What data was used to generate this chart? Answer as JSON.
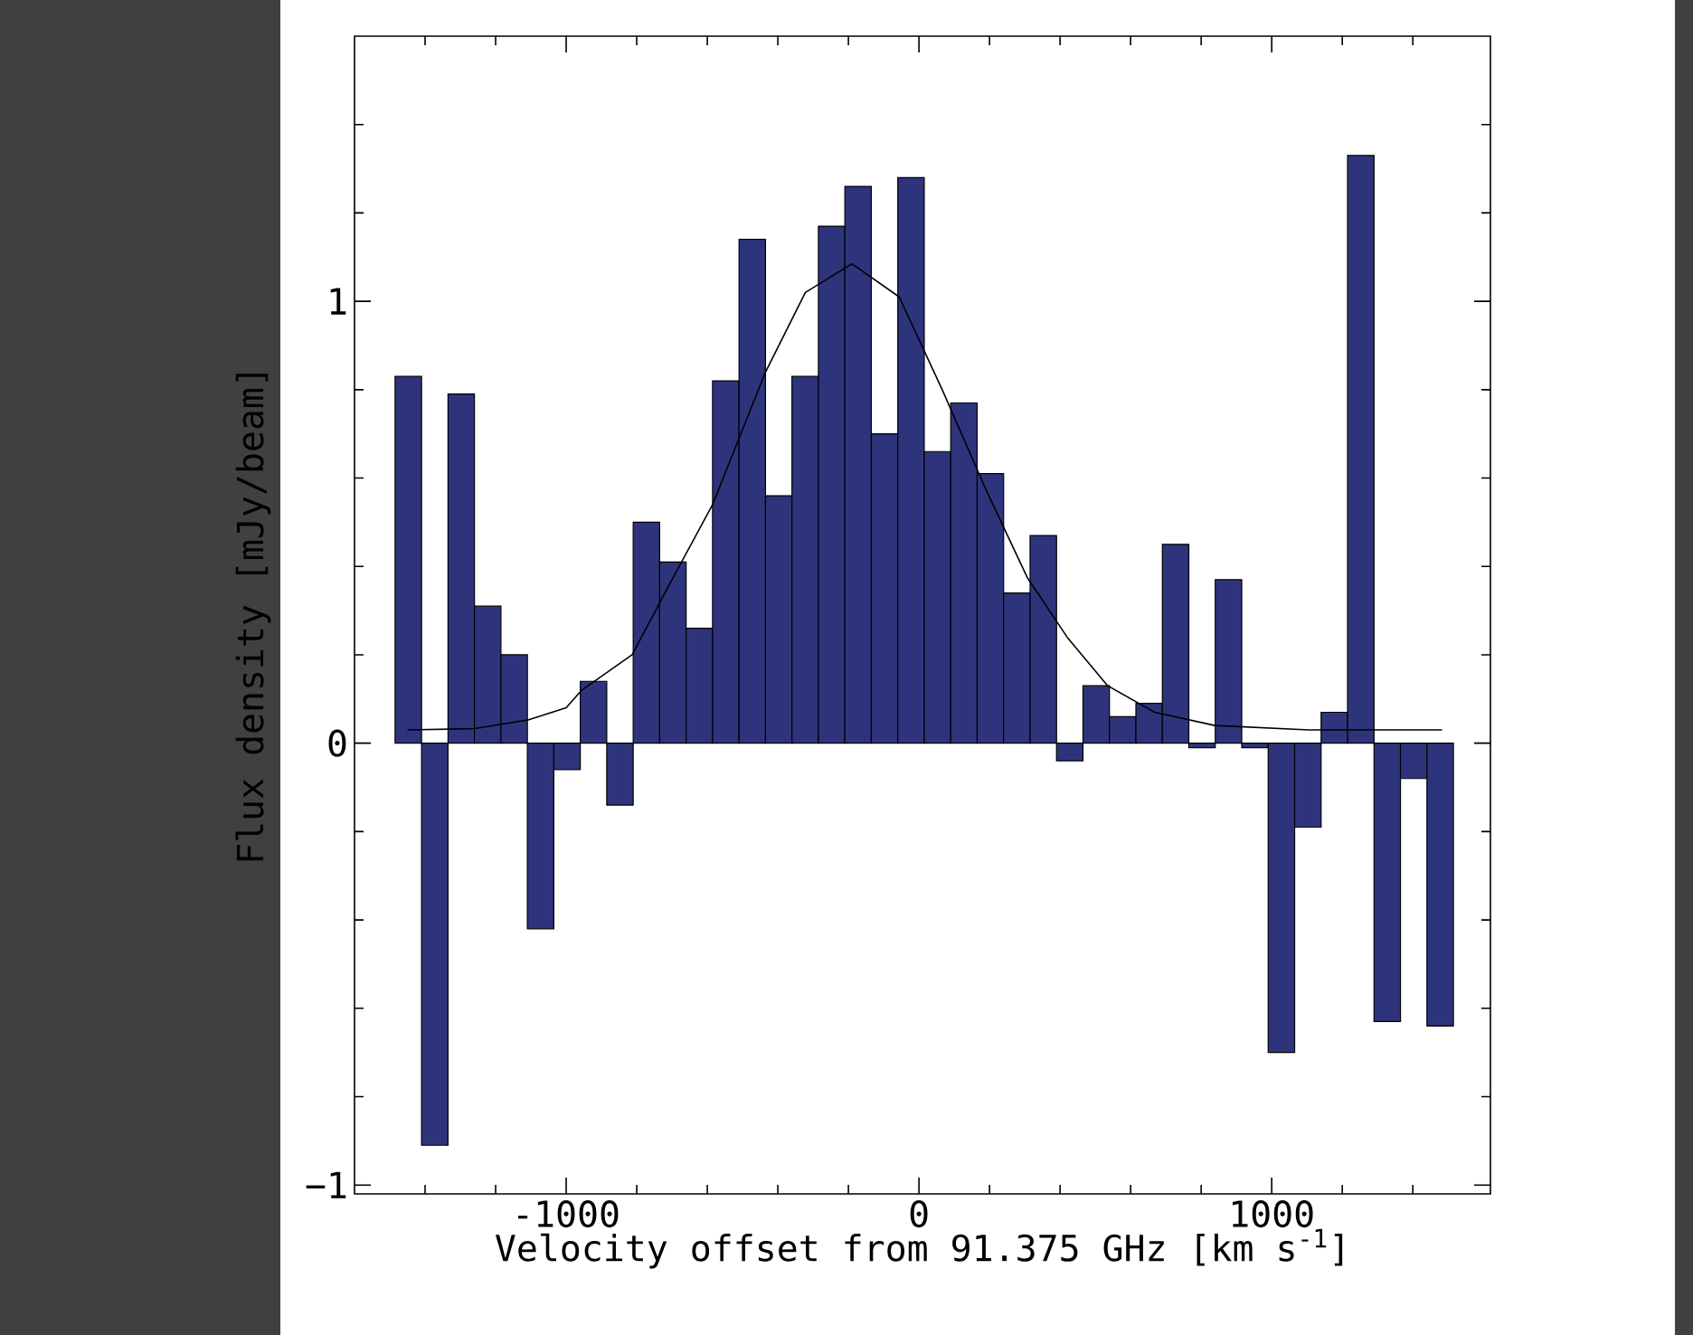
{
  "chart_data": {
    "type": "histogram",
    "xlabel": "Velocity offset from 91.375 GHz [km s$^{-1}$]",
    "ylabel": "Flux density [mJy/beam]",
    "bins": [
      -1485,
      -1410,
      -1335,
      -1260,
      -1185,
      -1110,
      -1035,
      -960,
      -885,
      -810,
      -735,
      -660,
      -585,
      -510,
      -435,
      -360,
      -285,
      -210,
      -135,
      -60,
      15,
      90,
      165,
      240,
      315,
      390,
      465,
      540,
      615,
      690,
      765,
      840,
      915,
      990,
      1065,
      1140,
      1215,
      1290,
      1365,
      1440,
      1515
    ],
    "values": [
      0.83,
      -0.91,
      0.79,
      0.31,
      0.2,
      -0.42,
      -0.06,
      0.14,
      -0.14,
      0.5,
      0.41,
      0.26,
      0.82,
      1.14,
      0.56,
      0.83,
      1.17,
      1.26,
      0.7,
      1.28,
      0.66,
      0.77,
      0.61,
      0.34,
      0.47,
      -0.04,
      0.13,
      0.06,
      0.09,
      0.45,
      -0.01,
      0.37,
      -0.01,
      -0.7,
      -0.19,
      0.07,
      1.33,
      -0.63,
      -0.08,
      -0.64
    ],
    "color": "#2e347c",
    "series": [
      {
        "type": "line",
        "color": "#000000",
        "x": [
          -1450,
          -1258,
          -1106,
          -1000,
          -956,
          -813,
          -700,
          -585,
          -435,
          -322,
          -190,
          -56,
          66,
          192,
          307,
          420,
          535,
          668,
          839,
          1105,
          1483
        ],
        "values": [
          0.03,
          0.033,
          0.053,
          0.08,
          0.12,
          0.2,
          0.37,
          0.54,
          0.84,
          1.02,
          1.085,
          1.01,
          0.8,
          0.57,
          0.375,
          0.24,
          0.13,
          0.07,
          0.04,
          0.03,
          0.03
        ]
      }
    ],
    "xlim": [
      -1600,
      1620
    ],
    "ylim": [
      -1.02,
      1.6
    ],
    "xticks": [
      -1000,
      0,
      1000,
      {
        "value": -1400,
        "label": null
      },
      {
        "value": -1200,
        "label": null
      },
      {
        "value": -800,
        "label": null
      },
      {
        "value": -600,
        "label": null
      },
      {
        "value": -400,
        "label": null
      },
      {
        "value": -200,
        "label": null
      },
      {
        "value": 200,
        "label": null
      },
      {
        "value": 400,
        "label": null
      },
      {
        "value": 600,
        "label": null
      },
      {
        "value": 800,
        "label": null
      },
      {
        "value": 1200,
        "label": null
      },
      {
        "value": 1400,
        "label": null
      }
    ],
    "yticks": [
      {
        "value": -1,
        "label": "−1"
      },
      0,
      1,
      {
        "value": -0.8,
        "label": null
      },
      {
        "value": -0.6,
        "label": null
      },
      {
        "value": -0.4,
        "label": null
      },
      {
        "value": -0.2,
        "label": null
      },
      {
        "value": 0.2,
        "label": null
      },
      {
        "value": 0.4,
        "label": null
      },
      {
        "value": 0.6,
        "label": null
      },
      {
        "value": 0.8,
        "label": null
      },
      {
        "value": 1.2,
        "label": null
      },
      {
        "value": 1.4,
        "label": null
      }
    ]
  }
}
